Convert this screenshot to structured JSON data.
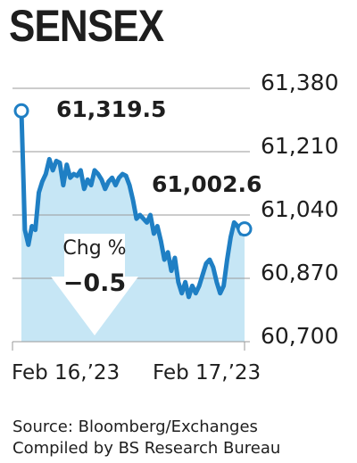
{
  "header": {
    "title": "SENSEX"
  },
  "chart_data": {
    "type": "area",
    "title": "SENSEX",
    "xlabel": "",
    "ylabel": "",
    "ylim": [
      60700,
      61380
    ],
    "yticks": [
      61380,
      61210,
      61040,
      60870,
      60700
    ],
    "ytick_labels": [
      "61,380",
      "61,210",
      "61,040",
      "60,870",
      "60,700"
    ],
    "xtick_labels": [
      "Feb 16,’23",
      "Feb 17,’23"
    ],
    "grid": true,
    "colors": {
      "line": "#1f7fc4",
      "fill": "#c6e6f5",
      "grid": "#9a9a9a"
    },
    "series": [
      {
        "values": [
          61319.5,
          61000,
          60960,
          61010,
          61000,
          61100,
          61130,
          61150,
          61190,
          61160,
          61185,
          61180,
          61120,
          61175,
          61140,
          61150,
          61145,
          61160,
          61110,
          61135,
          61120,
          61160,
          61150,
          61135,
          61110,
          61130,
          61140,
          61120,
          61140,
          61150,
          61145,
          61120,
          61080,
          61030,
          61040,
          61030,
          61020,
          61040,
          60990,
          61010,
          60970,
          60920,
          60940,
          60890,
          60925,
          60860,
          60830,
          60860,
          60820,
          60850,
          60830,
          60850,
          60880,
          60910,
          60920,
          60900,
          60860,
          60830,
          60850,
          60920,
          60980,
          61020,
          61010,
          60990,
          61002.6
        ]
      }
    ],
    "annotations": [
      {
        "label": "61,319.5",
        "x_index": 0,
        "y": 61319.5
      },
      {
        "label": "61,002.6",
        "x_index": 64,
        "y": 61002.6
      }
    ]
  },
  "callout": {
    "label": "Chg %",
    "value": "−0.5"
  },
  "footer": {
    "source": "Source: Bloomberg/Exchanges",
    "compiled": "Compiled by BS Research Bureau"
  }
}
